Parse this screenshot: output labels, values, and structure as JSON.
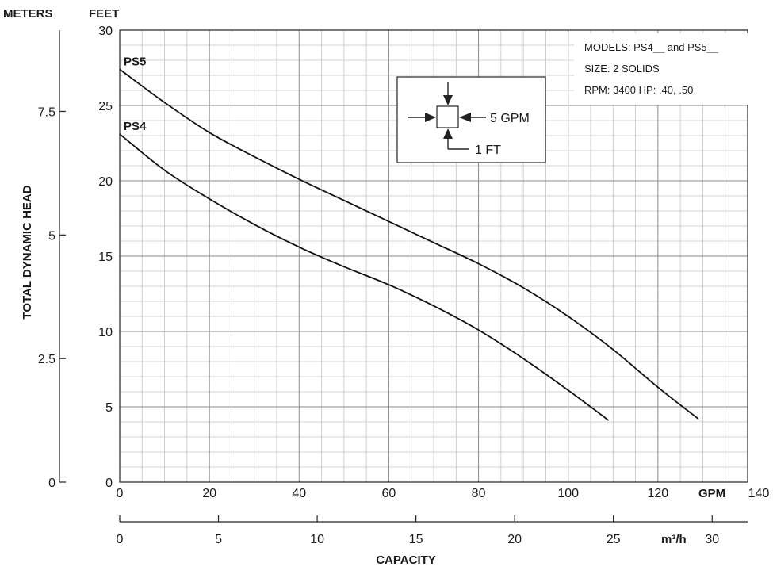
{
  "chart_data": {
    "type": "line",
    "title": "",
    "xlabel": "CAPACITY",
    "ylabel": "TOTAL DYNAMIC HEAD",
    "x_unit_primary": "GPM",
    "x_unit_secondary": "m³/h",
    "y_unit_primary": "FEET",
    "y_unit_secondary": "METERS",
    "xlim": [
      0,
      140
    ],
    "ylim": [
      0,
      30
    ],
    "x_secondary_lim": [
      0,
      30
    ],
    "y_secondary_lim": [
      0,
      9.14
    ],
    "x_ticks": [
      "0",
      "20",
      "40",
      "60",
      "80",
      "100",
      "120",
      "140"
    ],
    "y_ticks": [
      "0",
      "5",
      "10",
      "15",
      "20",
      "25",
      "30"
    ],
    "x_secondary_ticks": [
      "0",
      "5",
      "10",
      "15",
      "20",
      "25",
      "30"
    ],
    "y_secondary_ticks": [
      "0",
      "2.5",
      "5",
      "7.5"
    ],
    "grid": true,
    "series": [
      {
        "name": "PS5",
        "x": [
          0,
          10,
          20,
          30,
          40,
          50,
          60,
          70,
          80,
          90,
          100,
          110,
          120,
          129
        ],
        "y": [
          27.4,
          25.2,
          23.2,
          21.6,
          20.1,
          18.7,
          17.3,
          15.9,
          14.5,
          12.9,
          11.0,
          8.8,
          6.3,
          4.2
        ]
      },
      {
        "name": "PS4",
        "x": [
          0,
          10,
          20,
          30,
          40,
          50,
          60,
          70,
          80,
          90,
          100,
          109
        ],
        "y": [
          23.1,
          20.7,
          18.8,
          17.1,
          15.6,
          14.3,
          13.1,
          11.7,
          10.1,
          8.2,
          6.1,
          4.1
        ]
      }
    ],
    "info_box": {
      "line1": "MODELS: PS4__ and PS5__",
      "line2": "SIZE: 2  SOLIDS",
      "line3": "RPM: 3400    HP: .40, .50"
    },
    "scale_key": {
      "h_label": "5 GPM",
      "v_label": "1 FT"
    }
  }
}
